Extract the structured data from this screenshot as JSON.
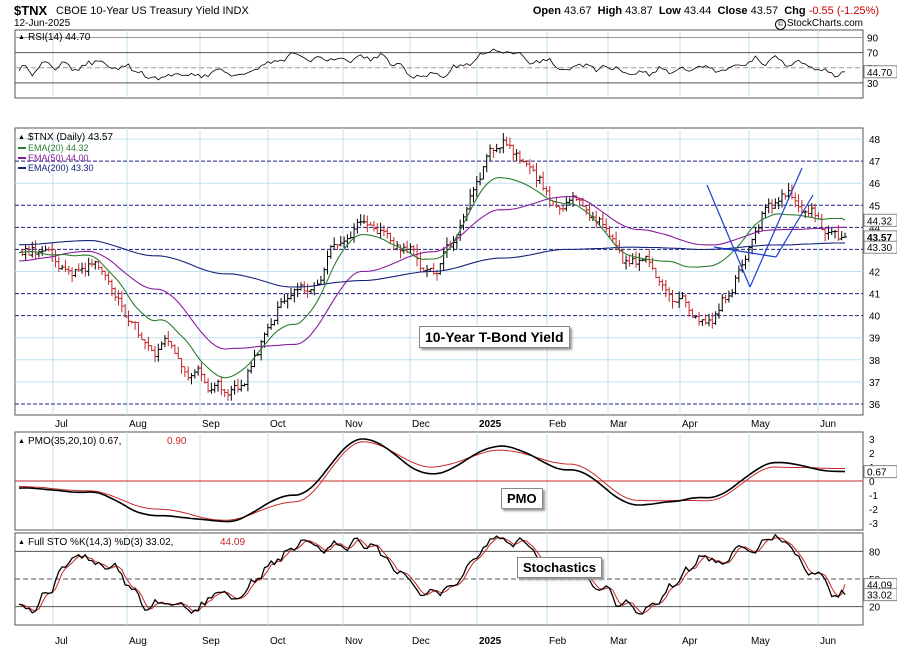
{
  "header": {
    "ticker": "$TNX",
    "name": "CBOE 10-Year US Treasury Yield INDX",
    "date": "12-Jun-2025",
    "open_label": "Open",
    "open": "43.67",
    "high_label": "High",
    "high": "43.87",
    "low_label": "Low",
    "low": "43.44",
    "close_label": "Close",
    "close": "43.57",
    "chg_label": "Chg",
    "chg": "-0.55 (-1.25%)",
    "copyright": "StockCharts.com",
    "copyright_symbol": "©"
  },
  "colors": {
    "grid": "#bfe0ee",
    "price": "#000000",
    "ema20": "#2e7d32",
    "ema50": "#8b1c9e",
    "ema200": "#1a237e",
    "rsi": "#000000",
    "pmo": "#000000",
    "pmo_signal": "#c62828",
    "stoch_k": "#000000",
    "stoch_d": "#c62828",
    "zero_line": "#c62828",
    "trendline": "#1a3fd0"
  },
  "x_axis": {
    "labels": [
      "Jul",
      "Aug",
      "Sep",
      "Oct",
      "Nov",
      "Dec",
      "2025",
      "Feb",
      "Mar",
      "Apr",
      "May",
      "Jun"
    ]
  },
  "rsi_panel": {
    "legend": "RSI(14) 44.70",
    "ticks": [
      "90",
      "70",
      "50",
      "30"
    ],
    "last_label": "44.70"
  },
  "price_panel": {
    "legend": "$TNX (Daily) 43.57",
    "ema20_legend": "EMA(20) 44.32",
    "ema50_legend": "EMA(50) 44.00",
    "ema200_legend": "EMA(200) 43.30",
    "ticks": [
      "48",
      "47",
      "46",
      "45",
      "44",
      "43",
      "42",
      "41",
      "40",
      "39",
      "38",
      "37",
      "36"
    ],
    "flag_ema20": "44.32",
    "flag_close": "43.57",
    "flag_ema200": "43.30",
    "annotation": "10-Year T-Bond Yield"
  },
  "pmo_panel": {
    "legend_main": "PMO(35,20,10) 0.67,",
    "legend_signal": "0.90",
    "ticks": [
      "3",
      "2",
      "1",
      "0",
      "-1",
      "-2",
      "-3"
    ],
    "flag_value": "0.67",
    "annotation": "PMO"
  },
  "stoch_panel": {
    "legend_main": "Full STO %K(14,3) %D(3) 33.02,",
    "legend_signal": "44.09",
    "ticks": [
      "80",
      "50",
      "20"
    ],
    "flag_d": "44.09",
    "flag_k": "33.02",
    "annotation": "Stochastics"
  },
  "chart_data": [
    {
      "type": "line",
      "title": "RSI(14)",
      "ylim": [
        10,
        100
      ],
      "x": [
        "Jun-24",
        "Jul",
        "Aug",
        "Sep",
        "Oct",
        "Nov",
        "Dec",
        "Jan-25",
        "Feb",
        "Mar",
        "Apr",
        "May",
        "Jun"
      ],
      "series": [
        {
          "name": "RSI(14)",
          "values": [
            50,
            55,
            38,
            45,
            62,
            65,
            40,
            68,
            55,
            42,
            48,
            60,
            44.7
          ]
        }
      ]
    },
    {
      "type": "line",
      "title": "$TNX (Daily)",
      "ylim": [
        35.5,
        48.5
      ],
      "x": [
        "Jun-24",
        "Jul",
        "Aug",
        "Sep",
        "Oct",
        "Nov",
        "Dec",
        "Jan-25",
        "Feb",
        "Mar",
        "Apr",
        "May",
        "Jun"
      ],
      "series": [
        {
          "name": "$TNX (Daily)",
          "values": [
            42.9,
            42.3,
            38.7,
            36.4,
            40.8,
            44.2,
            42.2,
            47.8,
            45.0,
            42.3,
            40.0,
            45.2,
            43.57
          ]
        },
        {
          "name": "EMA(20)",
          "values": [
            42.9,
            42.7,
            39.8,
            37.2,
            39.6,
            43.7,
            42.5,
            46.3,
            45.1,
            42.6,
            42.2,
            44.6,
            44.32
          ]
        },
        {
          "name": "EMA(50)",
          "values": [
            42.5,
            42.9,
            41.2,
            38.5,
            38.7,
            42.0,
            42.9,
            44.8,
            45.4,
            43.9,
            43.2,
            43.9,
            44.0
          ]
        },
        {
          "name": "EMA(200)",
          "values": [
            43.2,
            43.4,
            42.7,
            41.9,
            41.3,
            41.6,
            42.0,
            42.6,
            43.0,
            43.1,
            43.0,
            43.2,
            43.3
          ]
        }
      ]
    },
    {
      "type": "line",
      "title": "PMO(35,20,10)",
      "ylim": [
        -3.5,
        3.5
      ],
      "x": [
        "Jun-24",
        "Jul",
        "Aug",
        "Sep",
        "Oct",
        "Nov",
        "Dec",
        "Jan-25",
        "Feb",
        "Mar",
        "Apr",
        "May",
        "Jun"
      ],
      "series": [
        {
          "name": "PMO",
          "values": [
            -0.5,
            -0.8,
            -2.5,
            -2.9,
            -1.0,
            3.0,
            0.5,
            2.5,
            0.8,
            -1.7,
            -1.2,
            1.3,
            0.67
          ]
        },
        {
          "name": "Signal",
          "values": [
            -0.4,
            -0.7,
            -2.0,
            -2.8,
            -1.5,
            2.8,
            1.0,
            2.2,
            1.2,
            -1.4,
            -1.4,
            1.0,
            0.9
          ]
        }
      ]
    },
    {
      "type": "line",
      "title": "Full STO %K(14,3) %D(3)",
      "ylim": [
        0,
        100
      ],
      "x": [
        "Jun-24",
        "Jul",
        "Aug",
        "Sep",
        "Oct",
        "Nov",
        "Dec",
        "Jan-25",
        "Feb",
        "Mar",
        "Apr",
        "May",
        "Jun"
      ],
      "series": [
        {
          "name": "%K",
          "values": [
            15,
            75,
            20,
            25,
            85,
            90,
            30,
            95,
            60,
            15,
            70,
            92,
            33.02
          ]
        },
        {
          "name": "%D",
          "values": [
            18,
            70,
            25,
            28,
            82,
            88,
            35,
            92,
            62,
            18,
            65,
            88,
            44.09
          ]
        }
      ]
    }
  ]
}
